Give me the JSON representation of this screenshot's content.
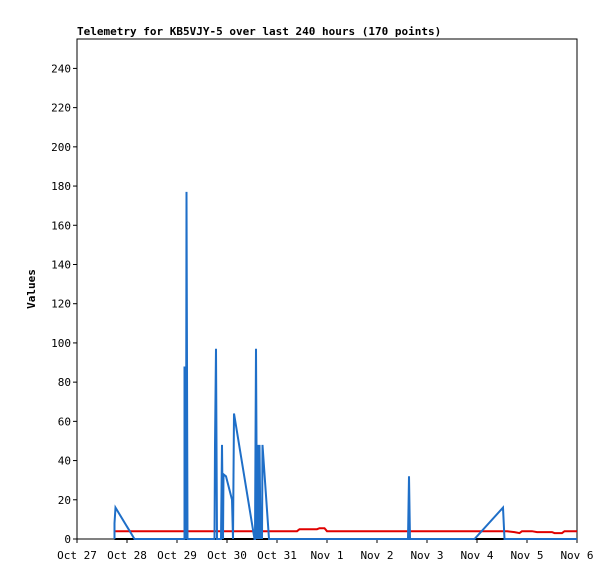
{
  "chart_data": {
    "type": "line",
    "title": "Telemetry for KB5VJY-5 over last 240 hours (170 points)",
    "xlabel": "",
    "ylabel": "Values",
    "xlim": [
      "Oct 27",
      "Nov 6"
    ],
    "ylim": [
      0,
      255
    ],
    "x_ticks": [
      "Oct 27",
      "Oct 28",
      "Oct 29",
      "Oct 30",
      "Oct 31",
      "Nov 1",
      "Nov 2",
      "Nov 3",
      "Nov 4",
      "Nov 5",
      "Nov 6"
    ],
    "y_ticks": [
      0,
      20,
      40,
      60,
      80,
      100,
      120,
      140,
      160,
      180,
      200,
      220,
      240
    ],
    "grid": false,
    "legend": "none",
    "series": [
      {
        "color": "#e00000",
        "points": [
          [
            0.75,
            4
          ],
          [
            2.0,
            4
          ],
          [
            3.0,
            4
          ],
          [
            4.0,
            4
          ],
          [
            4.4,
            4
          ],
          [
            4.45,
            5
          ],
          [
            4.8,
            5
          ],
          [
            4.85,
            5.5
          ],
          [
            4.95,
            5.5
          ],
          [
            5.0,
            4
          ],
          [
            6.0,
            4
          ],
          [
            7.0,
            4
          ],
          [
            8.0,
            4
          ],
          [
            8.6,
            4
          ],
          [
            8.75,
            3.5
          ],
          [
            8.85,
            3
          ],
          [
            8.9,
            4
          ],
          [
            9.1,
            4
          ],
          [
            9.2,
            3.5
          ],
          [
            9.5,
            3.5
          ],
          [
            9.55,
            3
          ],
          [
            9.7,
            3
          ],
          [
            9.75,
            4
          ],
          [
            10.0,
            4
          ]
        ]
      },
      {
        "color": "#000000",
        "points": [
          [
            0.75,
            0
          ],
          [
            10.0,
            0
          ]
        ]
      },
      {
        "color": "#1f6fc8",
        "points": [
          [
            0.75,
            0
          ],
          [
            0.75,
            8
          ],
          [
            0.77,
            16
          ],
          [
            1.15,
            0
          ],
          [
            2.15,
            0
          ],
          [
            2.15,
            88
          ],
          [
            2.18,
            0
          ],
          [
            2.19,
            177
          ],
          [
            2.21,
            0
          ],
          [
            2.75,
            0
          ],
          [
            2.76,
            48
          ],
          [
            2.78,
            97
          ],
          [
            2.8,
            0
          ],
          [
            2.88,
            0
          ],
          [
            2.9,
            48
          ],
          [
            2.92,
            0
          ],
          [
            2.93,
            33
          ],
          [
            2.98,
            32
          ],
          [
            3.1,
            20
          ],
          [
            3.12,
            0
          ],
          [
            3.14,
            64
          ],
          [
            3.55,
            0
          ],
          [
            3.56,
            0
          ],
          [
            3.58,
            97
          ],
          [
            3.6,
            0
          ],
          [
            3.62,
            48
          ],
          [
            3.64,
            0
          ],
          [
            3.65,
            48
          ],
          [
            3.67,
            0
          ],
          [
            3.68,
            16
          ],
          [
            3.7,
            0
          ],
          [
            3.71,
            48
          ],
          [
            3.84,
            0
          ],
          [
            6.62,
            0
          ],
          [
            6.63,
            16
          ],
          [
            6.64,
            32
          ],
          [
            6.66,
            0
          ],
          [
            7.95,
            0
          ],
          [
            8.52,
            16
          ],
          [
            8.55,
            0
          ],
          [
            9.0,
            0
          ],
          [
            10.0,
            0
          ]
        ]
      }
    ]
  }
}
